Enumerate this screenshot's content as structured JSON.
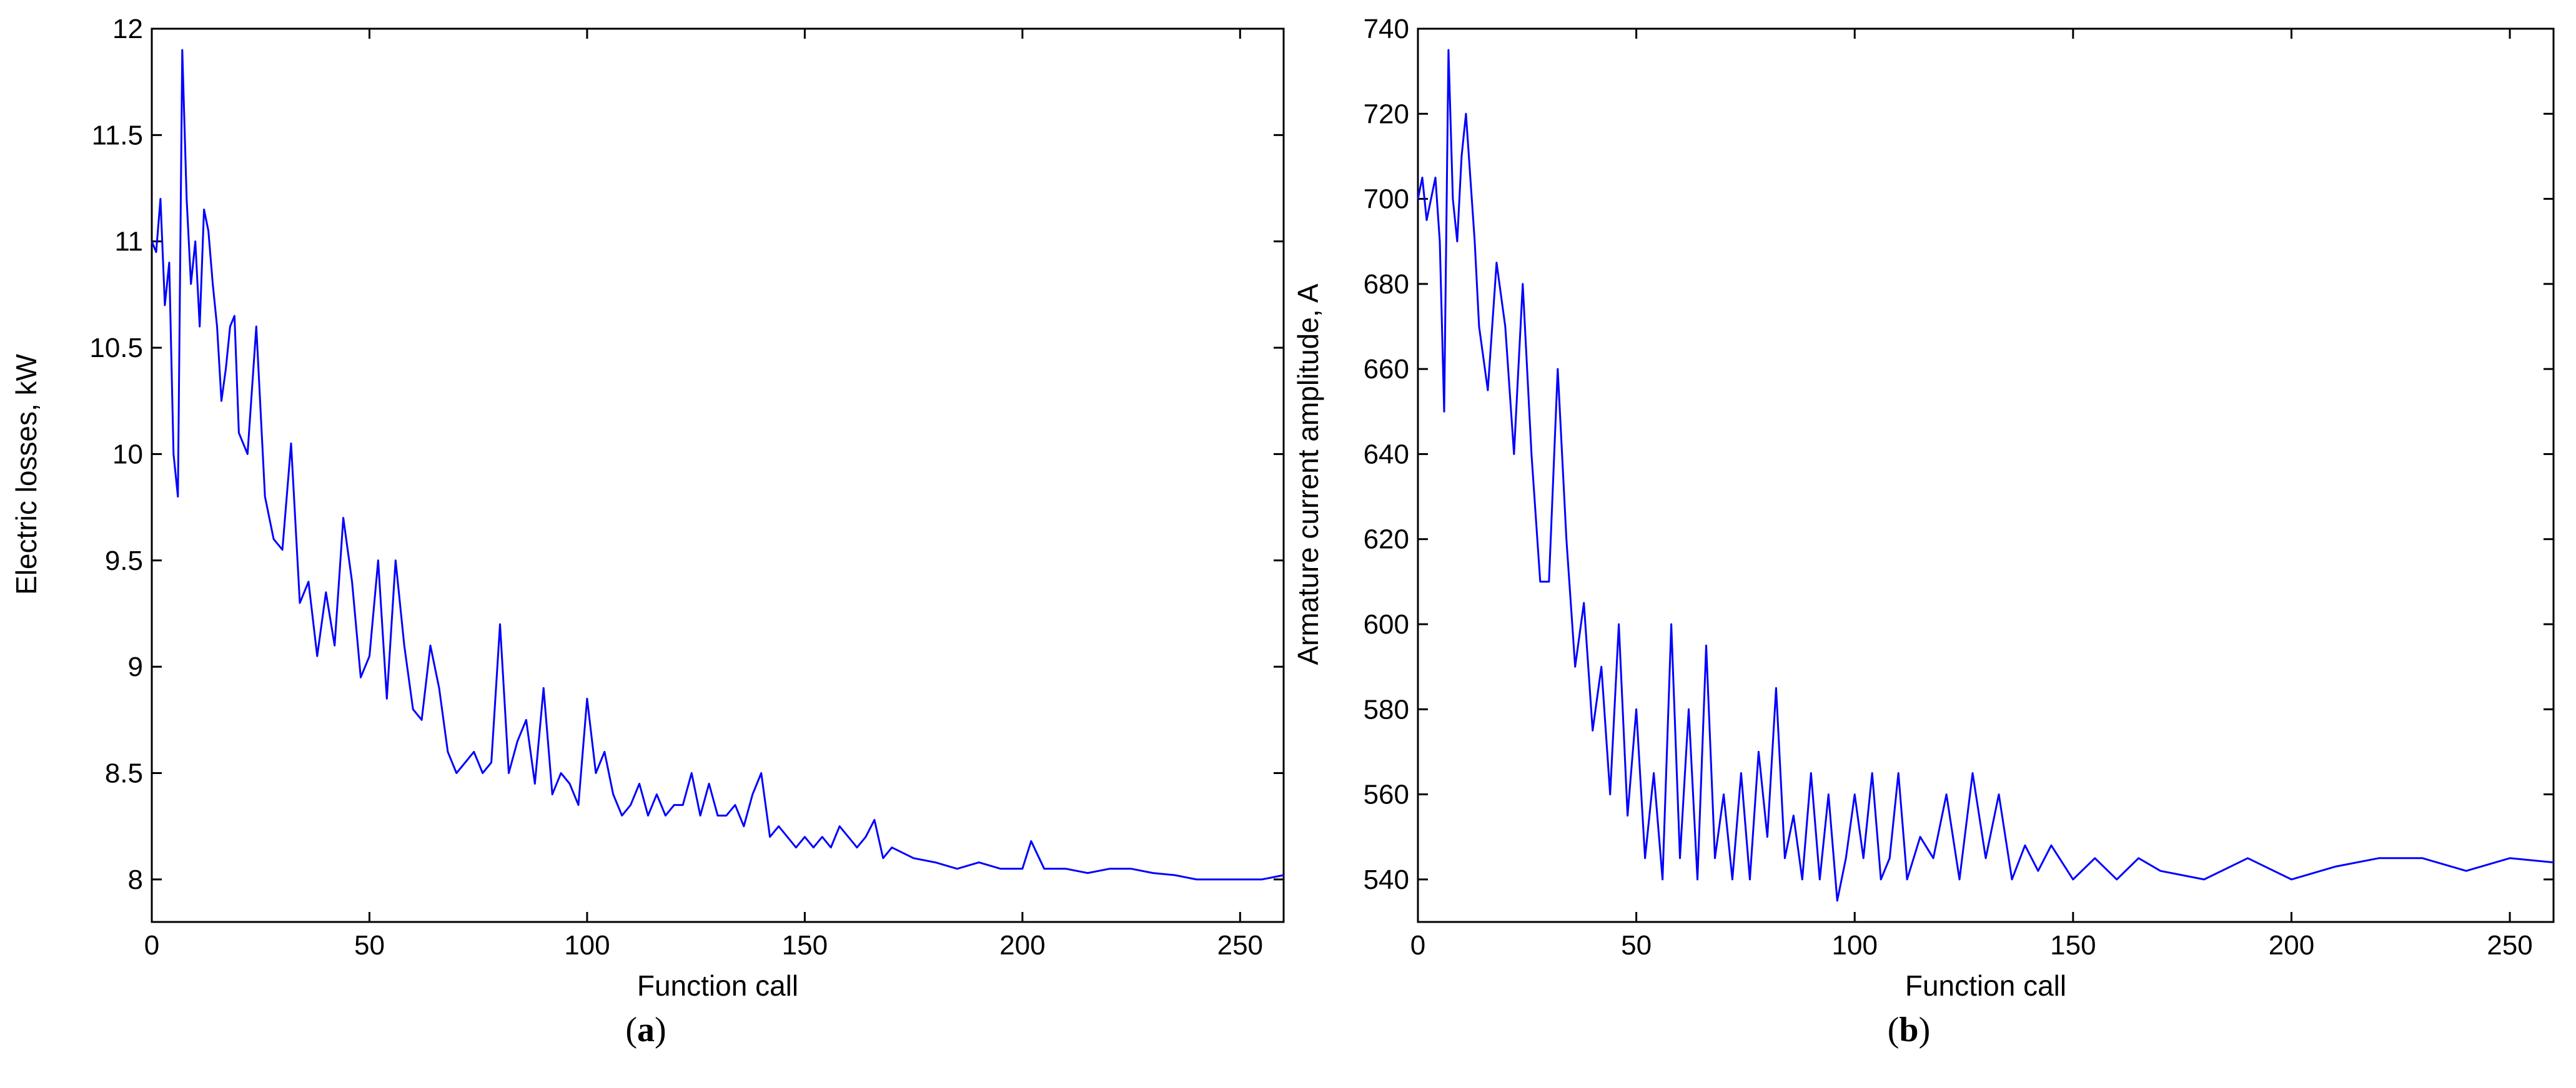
{
  "chart_data": [
    {
      "type": "line",
      "caption": {
        "open": "(",
        "letter": "a",
        "close": ")"
      },
      "xlabel": "Function call",
      "ylabel": "Electric losses, kW",
      "xlim": [
        0,
        260
      ],
      "ylim": [
        7.8,
        12
      ],
      "xticks": [
        0,
        50,
        100,
        150,
        200,
        250
      ],
      "yticks": [
        8,
        8.5,
        9,
        9.5,
        10,
        10.5,
        11,
        11.5,
        12
      ],
      "line_color": "#0000ff",
      "grid": false,
      "series": [
        {
          "x": [
            0,
            1,
            2,
            3,
            4,
            5,
            6,
            7,
            8,
            9,
            10,
            11,
            12,
            13,
            14,
            15,
            16,
            17,
            18,
            19,
            20,
            22,
            24,
            26,
            28,
            30,
            32,
            34,
            36,
            38,
            40,
            42,
            44,
            46,
            48,
            50,
            52,
            54,
            56,
            58,
            60,
            62,
            64,
            66,
            68,
            70,
            72,
            74,
            76,
            78,
            80,
            82,
            84,
            86,
            88,
            90,
            92,
            94,
            96,
            98,
            100,
            102,
            104,
            106,
            108,
            110,
            112,
            114,
            116,
            118,
            120,
            122,
            124,
            126,
            128,
            130,
            132,
            134,
            136,
            138,
            140,
            142,
            144,
            146,
            148,
            150,
            152,
            154,
            156,
            158,
            160,
            162,
            164,
            166,
            168,
            170,
            175,
            180,
            185,
            190,
            195,
            200,
            202,
            205,
            210,
            215,
            220,
            225,
            230,
            235,
            240,
            245,
            250,
            255,
            260
          ],
          "y": [
            11.0,
            10.95,
            11.2,
            10.7,
            10.9,
            10.0,
            9.8,
            11.9,
            11.2,
            10.8,
            11.0,
            10.6,
            11.15,
            11.05,
            10.8,
            10.6,
            10.25,
            10.4,
            10.6,
            10.65,
            10.1,
            10.0,
            10.6,
            9.8,
            9.6,
            9.55,
            10.05,
            9.3,
            9.4,
            9.05,
            9.35,
            9.1,
            9.7,
            9.4,
            8.95,
            9.05,
            9.5,
            8.85,
            9.5,
            9.1,
            8.8,
            8.75,
            9.1,
            8.9,
            8.6,
            8.5,
            8.55,
            8.6,
            8.5,
            8.55,
            9.2,
            8.5,
            8.65,
            8.75,
            8.45,
            8.9,
            8.4,
            8.5,
            8.45,
            8.35,
            8.85,
            8.5,
            8.6,
            8.4,
            8.3,
            8.35,
            8.45,
            8.3,
            8.4,
            8.3,
            8.35,
            8.35,
            8.5,
            8.3,
            8.45,
            8.3,
            8.3,
            8.35,
            8.25,
            8.4,
            8.5,
            8.2,
            8.25,
            8.2,
            8.15,
            8.2,
            8.15,
            8.2,
            8.15,
            8.25,
            8.2,
            8.15,
            8.2,
            8.28,
            8.1,
            8.15,
            8.1,
            8.08,
            8.05,
            8.08,
            8.05,
            8.05,
            8.18,
            8.05,
            8.05,
            8.03,
            8.05,
            8.05,
            8.03,
            8.02,
            8.0,
            8.0,
            8.0,
            8.0,
            8.02
          ]
        }
      ]
    },
    {
      "type": "line",
      "caption": {
        "open": "(",
        "letter": "b",
        "close": ")"
      },
      "xlabel": "Function call",
      "ylabel": "Armature current amplitude, A",
      "xlim": [
        0,
        260
      ],
      "ylim": [
        530,
        740
      ],
      "xticks": [
        0,
        50,
        100,
        150,
        200,
        250
      ],
      "yticks": [
        540,
        560,
        580,
        600,
        620,
        640,
        660,
        680,
        700,
        720,
        740
      ],
      "line_color": "#0000ff",
      "grid": false,
      "series": [
        {
          "x": [
            0,
            1,
            2,
            3,
            4,
            5,
            6,
            7,
            8,
            9,
            10,
            11,
            12,
            13,
            14,
            16,
            18,
            20,
            22,
            24,
            26,
            28,
            30,
            32,
            34,
            36,
            38,
            40,
            42,
            44,
            46,
            48,
            50,
            52,
            54,
            56,
            58,
            60,
            62,
            64,
            66,
            68,
            70,
            72,
            74,
            76,
            78,
            80,
            82,
            84,
            86,
            88,
            90,
            92,
            94,
            96,
            98,
            100,
            102,
            104,
            106,
            108,
            110,
            112,
            115,
            118,
            121,
            124,
            127,
            130,
            133,
            136,
            139,
            142,
            145,
            150,
            155,
            160,
            165,
            170,
            180,
            190,
            200,
            210,
            220,
            230,
            240,
            250,
            260
          ],
          "y": [
            700,
            705,
            695,
            700,
            705,
            690,
            650,
            735,
            700,
            690,
            710,
            720,
            705,
            690,
            670,
            655,
            685,
            670,
            640,
            680,
            640,
            610,
            610,
            660,
            620,
            590,
            605,
            575,
            590,
            560,
            600,
            555,
            580,
            545,
            565,
            540,
            600,
            545,
            580,
            540,
            595,
            545,
            560,
            540,
            565,
            540,
            570,
            550,
            585,
            545,
            555,
            540,
            565,
            540,
            560,
            535,
            545,
            560,
            545,
            565,
            540,
            545,
            565,
            540,
            550,
            545,
            560,
            540,
            565,
            545,
            560,
            540,
            548,
            542,
            548,
            540,
            545,
            540,
            545,
            542,
            540,
            545,
            540,
            543,
            545,
            545,
            542,
            545,
            544
          ]
        }
      ]
    }
  ]
}
